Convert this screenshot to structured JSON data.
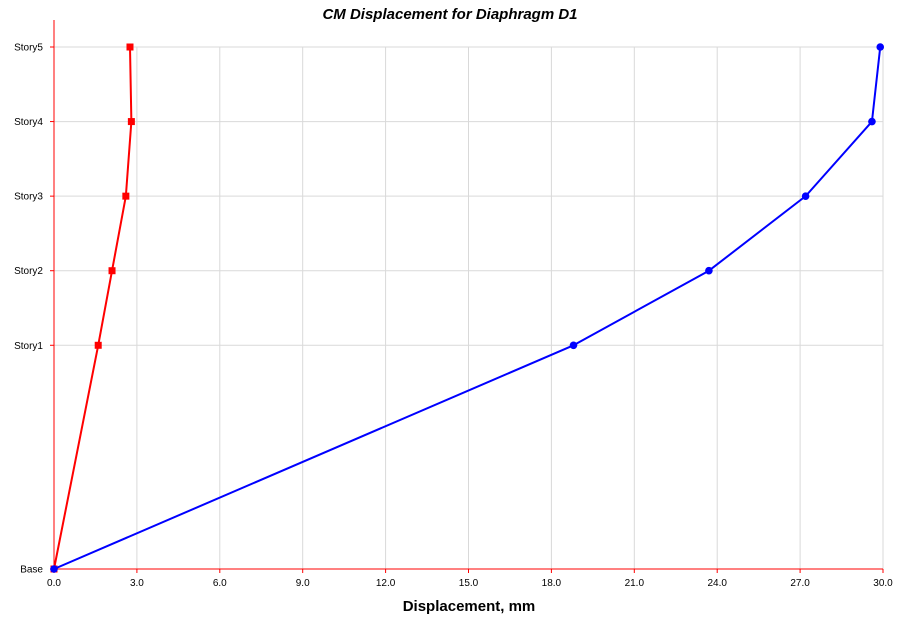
{
  "chart_data": {
    "type": "line",
    "title": "CM Displacement for Diaphragm D1",
    "xlabel": "Displacement, mm",
    "ylabel": "",
    "xlim": [
      0,
      30
    ],
    "x_ticks": [
      "0.0",
      "3.0",
      "6.0",
      "9.0",
      "12.0",
      "15.0",
      "18.0",
      "21.0",
      "24.0",
      "27.0",
      "30.0"
    ],
    "y_levels": [
      {
        "label": "Base",
        "elevation": 0
      },
      {
        "label": "Story1",
        "elevation": 3
      },
      {
        "label": "Story2",
        "elevation": 4
      },
      {
        "label": "Story3",
        "elevation": 5
      },
      {
        "label": "Story4",
        "elevation": 6
      },
      {
        "label": "Story5",
        "elevation": 7
      }
    ],
    "ylim": [
      0,
      7
    ],
    "grid": true,
    "series": [
      {
        "color": "#ff0000",
        "marker": "square",
        "points": [
          {
            "level": "Base",
            "x": 0.0
          },
          {
            "level": "Story1",
            "x": 1.6
          },
          {
            "level": "Story2",
            "x": 2.1
          },
          {
            "level": "Story3",
            "x": 2.6
          },
          {
            "level": "Story4",
            "x": 2.8
          },
          {
            "level": "Story5",
            "x": 2.75
          }
        ]
      },
      {
        "color": "#0000ff",
        "marker": "circle",
        "points": [
          {
            "level": "Base",
            "x": 0.0
          },
          {
            "level": "Story1",
            "x": 18.8
          },
          {
            "level": "Story2",
            "x": 23.7
          },
          {
            "level": "Story3",
            "x": 27.2
          },
          {
            "level": "Story4",
            "x": 29.6
          },
          {
            "level": "Story5",
            "x": 29.9
          }
        ]
      }
    ]
  }
}
